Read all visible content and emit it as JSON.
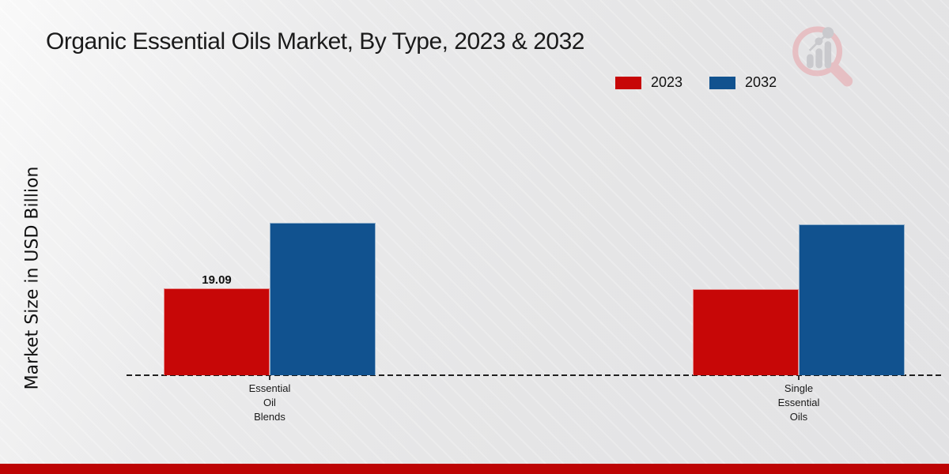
{
  "title": "Organic Essential Oils Market, By Type, 2023 & 2032",
  "y_axis_label": "Market Size in USD Billion",
  "legend": [
    {
      "label": "2023",
      "color": "#c70707"
    },
    {
      "label": "2032",
      "color": "#11528f"
    }
  ],
  "colors": {
    "bar_2023": "#c70707",
    "bar_2032": "#11528f",
    "baseline": "#1f1f1f",
    "footer_strip": "#bd0404",
    "watermark_pink": "#e7bcc0",
    "watermark_gray": "#c7c7cb"
  },
  "watermark_icon": "magnifier-bar-chart-logo",
  "chart_data": {
    "type": "bar",
    "categories": [
      "Essential Oil Blends",
      "Single Essential Oils"
    ],
    "categories_display": [
      "Essential\nOil\nBlends",
      "Single\nEssential\nOils"
    ],
    "series": [
      {
        "name": "2023",
        "color": "#c70707",
        "values": [
          19.09,
          19.0
        ],
        "labels": [
          "19.09",
          ""
        ]
      },
      {
        "name": "2032",
        "color": "#11528f",
        "values": [
          33.5,
          33.2
        ],
        "labels": [
          "",
          ""
        ]
      }
    ],
    "title": "Organic Essential Oils Market, By Type, 2023 & 2032",
    "xlabel": "",
    "ylabel": "Market Size in USD Billion",
    "ylim": [
      0,
      40
    ],
    "value_axis_ticks_visible": false,
    "grid": false,
    "baseline_style": "dashed",
    "legend_position": "top-right"
  }
}
